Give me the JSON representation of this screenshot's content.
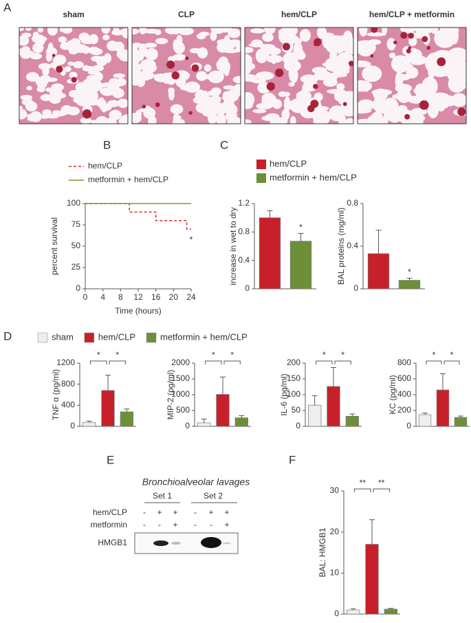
{
  "panels": [
    "A",
    "B",
    "C",
    "D",
    "E",
    "F"
  ],
  "histology": {
    "titles": [
      "sham",
      "CLP",
      "hem/CLP",
      "hem/CLP + metformin"
    ]
  },
  "blot": {
    "title": "Bronchioalveolar lavages",
    "sets": [
      "Set 1",
      "Set 2"
    ],
    "rows": [
      {
        "label": "hem/CLP",
        "marks": [
          "-",
          "+",
          "+",
          "-",
          "+",
          "+"
        ]
      },
      {
        "label": "metformin",
        "marks": [
          "-",
          "-",
          "+",
          "-",
          "-",
          "+"
        ]
      }
    ],
    "band_label": "HMGB1"
  },
  "chart_data": [
    {
      "type": "line",
      "xlabel": "Time (hours)",
      "ylabel": "percent survival",
      "xlim": [
        0,
        24
      ],
      "xticks": [
        0,
        4,
        8,
        12,
        16,
        20,
        24
      ],
      "ylim": [
        0,
        100
      ],
      "yticks": [
        0,
        25,
        50,
        75,
        100
      ],
      "series": [
        {
          "name": "hem/CLP",
          "color": "#d42a2a",
          "dashed": true,
          "x": [
            0,
            10,
            10,
            16,
            16,
            23,
            23,
            24
          ],
          "values": [
            100,
            100,
            90,
            90,
            80,
            80,
            70,
            70
          ]
        },
        {
          "name": "metformin + hem/CLP",
          "color": "#7a9a30",
          "dashed": false,
          "x": [
            0,
            24
          ],
          "values": [
            100,
            100
          ]
        }
      ],
      "annotation": "*"
    },
    {
      "type": "bar",
      "ylabel": "increase in wet to dry",
      "ylim": [
        0,
        1.2
      ],
      "yticks": [
        0,
        0.4,
        0.8,
        1.2
      ],
      "series": [
        {
          "name": "hem/CLP",
          "color": "#c8202a",
          "values": [
            1.0
          ],
          "errors": [
            0.1
          ]
        },
        {
          "name": "metformin + hem/CLP",
          "color": "#6b9038",
          "values": [
            0.67
          ],
          "errors": [
            0.11
          ]
        }
      ],
      "annotation": "*"
    },
    {
      "type": "bar",
      "ylabel": "BAL proteins (mg/ml)",
      "ylim": [
        0,
        0.8
      ],
      "yticks": [
        0,
        0.4,
        0.8
      ],
      "values": [
        0.33,
        0.08
      ],
      "errors": [
        0.22,
        0.02
      ],
      "colors": [
        "#c8202a",
        "#6b9038"
      ],
      "annotation": "*"
    },
    {
      "type": "bar",
      "ylabel": "TNF α (pg/ml)",
      "ylim": [
        0,
        1200
      ],
      "yticks": [
        0,
        400,
        800,
        1200
      ],
      "series": [
        {
          "name": "sham",
          "color": "#eeeeee",
          "values": [
            75
          ],
          "errors": [
            25
          ]
        },
        {
          "name": "hem/CLP",
          "color": "#c8202a",
          "values": [
            680
          ],
          "errors": [
            290
          ]
        },
        {
          "name": "metformin + hem/CLP",
          "color": "#6b9038",
          "values": [
            275
          ],
          "errors": [
            55
          ]
        }
      ],
      "significance": [
        "*",
        "*"
      ]
    },
    {
      "type": "bar",
      "ylabel": "MIP-2 (pg/ml)",
      "ylim": [
        0,
        2000
      ],
      "yticks": [
        0,
        500,
        1000,
        1500,
        2000
      ],
      "values": [
        110,
        1010,
        270
      ],
      "errors": [
        120,
        550,
        70
      ],
      "colors": [
        "#eeeeee",
        "#c8202a",
        "#6b9038"
      ],
      "significance": [
        "*",
        "*"
      ]
    },
    {
      "type": "bar",
      "ylabel": "IL-6 (pg/ml)",
      "ylim": [
        0,
        200
      ],
      "yticks": [
        0,
        50,
        100,
        150,
        200
      ],
      "values": [
        67,
        126,
        32
      ],
      "errors": [
        30,
        60,
        7
      ],
      "colors": [
        "#eeeeee",
        "#c8202a",
        "#6b9038"
      ],
      "significance": [
        "*",
        "*"
      ]
    },
    {
      "type": "bar",
      "ylabel": "KC (pg/ml)",
      "ylim": [
        0,
        800
      ],
      "yticks": [
        0,
        200,
        400,
        600,
        800
      ],
      "values": [
        148,
        460,
        113
      ],
      "errors": [
        20,
        205,
        17
      ],
      "colors": [
        "#eeeeee",
        "#c8202a",
        "#6b9038"
      ],
      "significance": [
        "*",
        "*"
      ]
    },
    {
      "type": "bar",
      "ylabel": "BAL: HMGB1",
      "ylim": [
        0,
        30
      ],
      "yticks": [
        0,
        10,
        20,
        30
      ],
      "values": [
        1,
        17,
        1.2
      ],
      "errors": [
        0.3,
        6,
        0.2
      ],
      "colors": [
        "#eeeeee",
        "#c8202a",
        "#6b9038"
      ],
      "significance": [
        "**",
        "**"
      ]
    }
  ]
}
